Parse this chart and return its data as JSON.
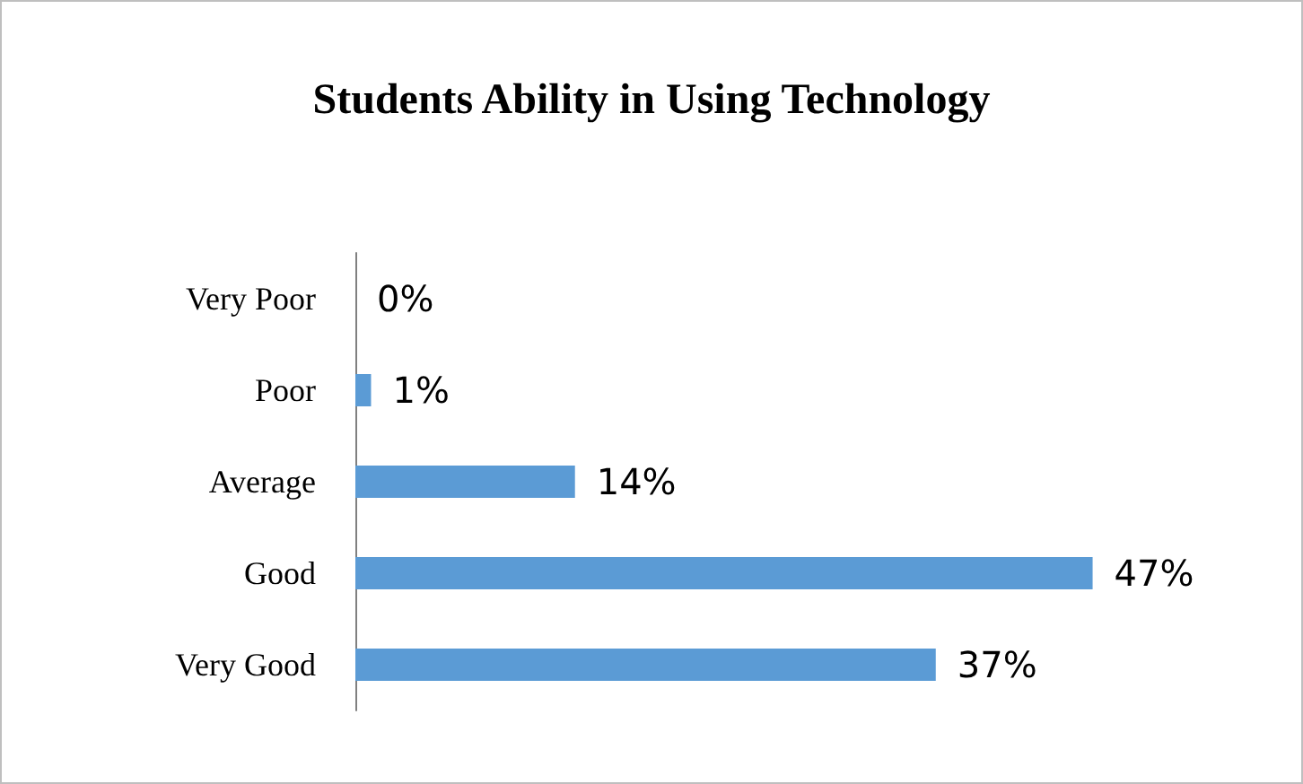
{
  "chart_data": {
    "type": "bar",
    "orientation": "horizontal",
    "title": "Students Ability in Using Technology",
    "categories": [
      "Very Poor",
      "Poor",
      "Average",
      "Good",
      "Very Good"
    ],
    "values": [
      0,
      1,
      14,
      47,
      37
    ],
    "value_labels": [
      "0%",
      "1%",
      "14%",
      "47%",
      "37%"
    ],
    "color": "#5b9bd5",
    "grid": false
  }
}
